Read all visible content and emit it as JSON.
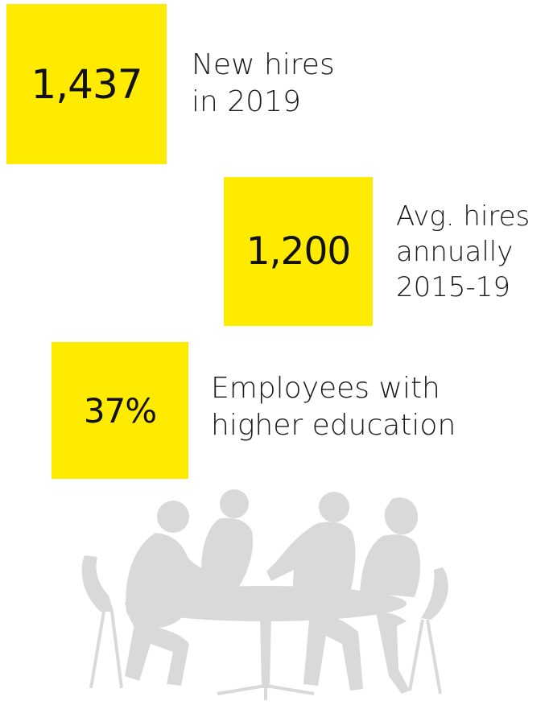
{
  "accent_color": "#FFEB00",
  "silhouette_color": "#D9D9D9",
  "stats": [
    {
      "value": "1,437",
      "label_line1": "New hires",
      "label_line2": "in 2019",
      "label_line3": ""
    },
    {
      "value": "1,200",
      "label_line1": "Avg. hires",
      "label_line2": "annually",
      "label_line3": "2015-19"
    },
    {
      "value": "37%",
      "label_line1": "Employees with",
      "label_line2": "higher education",
      "label_line3": ""
    }
  ],
  "illustration": {
    "icon": "meeting-silhouette-icon"
  }
}
